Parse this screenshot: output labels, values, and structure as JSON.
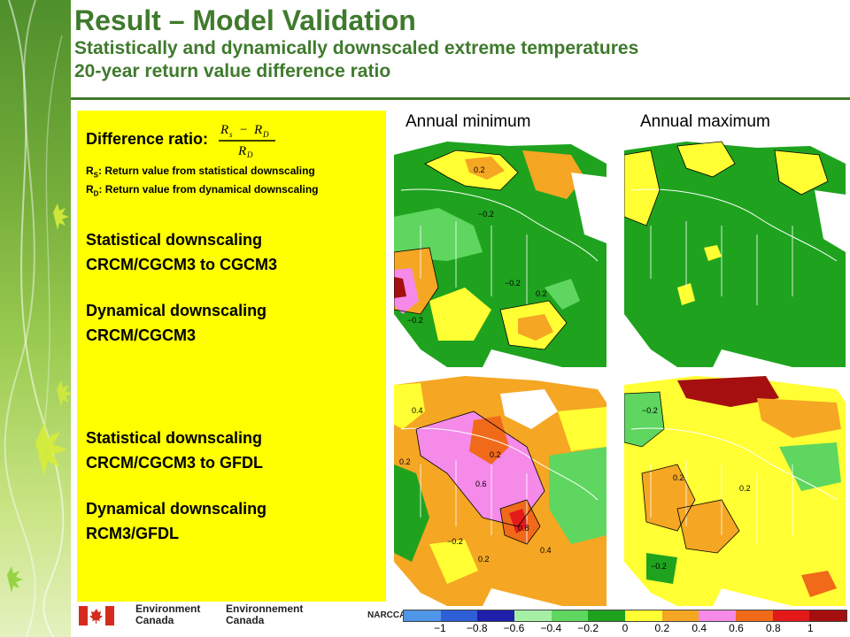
{
  "header": {
    "title": "Result – Model Validation",
    "subtitle_1": "Statistically and dynamically downscaled extreme temperatures",
    "subtitle_2": "20-year return value difference ratio"
  },
  "panel": {
    "difference_label": "Difference ratio:",
    "formula_numerator": "R_S − R_D",
    "formula_denominator": "R_D",
    "rs_symbol": "R",
    "rs_sub": "S",
    "rs_def": ": Return value from statistical downscaling",
    "rd_symbol": "R",
    "rd_sub": "D",
    "rd_def": ": Return value from dynamical downscaling",
    "block1_line1": "Statistical downscaling",
    "block1_line2": "CRCM/CGCM3 to CGCM3",
    "block2_line1": "Dynamical downscaling",
    "block2_line2": "CRCM/CGCM3",
    "block3_line1": "Statistical downscaling",
    "block3_line2": "CRCM/CGCM3 to GFDL",
    "block4_line1": "Dynamical downscaling",
    "block4_line2": "RCM3/GFDL"
  },
  "columns": {
    "left": "Annual minimum",
    "right": "Annual maximum"
  },
  "maps": {
    "top_left_labels": [
      "0.2",
      "0.2",
      "−0.2",
      "−0.2",
      "−0.2"
    ],
    "top_right_labels": [],
    "bottom_left_labels": [
      "0.4",
      "0.2",
      "0.6",
      "0.2",
      "0.8",
      "−0.2",
      "0.2",
      "0.4"
    ],
    "bottom_right_labels": [
      "−0.2",
      "0.2",
      "−0.2",
      "0.2"
    ]
  },
  "footer": {
    "ec_en_1": "Environment",
    "ec_en_2": "Canada",
    "ec_fr_1": "Environnement",
    "ec_fr_2": "Canada",
    "narc": "NARCCAP"
  },
  "colorbar": {
    "colors": [
      "#4f95e8",
      "#2e5fd6",
      "#1f1faa",
      "#a6f0a6",
      "#5fd65f",
      "#1fa31f",
      "#ffff33",
      "#f5a623",
      "#f58ae8",
      "#f06a1a",
      "#e41a1a",
      "#a50f0f"
    ],
    "ticks": [
      "−1",
      "−0.8",
      "−0.6",
      "−0.4",
      "−0.2",
      "0",
      "0.2",
      "0.4",
      "0.6",
      "0.8",
      "1"
    ]
  },
  "colors": {
    "accent_green": "#3f7a2d",
    "panel_yellow": "#ffff00"
  }
}
